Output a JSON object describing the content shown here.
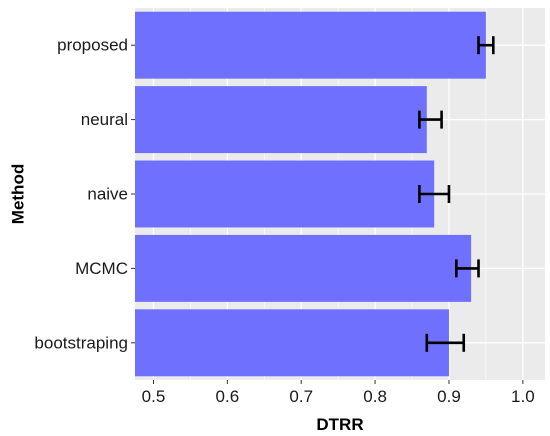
{
  "chart_data": {
    "type": "bar",
    "orientation": "horizontal",
    "xlabel": "DTRR",
    "ylabel": "Method",
    "categories": [
      "proposed",
      "neural",
      "naive",
      "MCMC",
      "bootstraping"
    ],
    "values": [
      0.95,
      0.87,
      0.88,
      0.93,
      0.9
    ],
    "error_low": [
      0.94,
      0.86,
      0.86,
      0.91,
      0.87
    ],
    "error_high": [
      0.96,
      0.89,
      0.9,
      0.94,
      0.92
    ],
    "xlim": [
      0.475,
      1.03
    ],
    "x_ticks": [
      "0.5",
      "0.6",
      "0.7",
      "0.8",
      "0.9",
      "1.0"
    ],
    "x_tick_values": [
      0.5,
      0.6,
      0.7,
      0.8,
      0.9,
      1.0
    ],
    "grid": true,
    "legend": "none",
    "colors": {
      "bar": "#7070ff",
      "panel": "#ebebeb",
      "gridline": "#ffffff",
      "errorbar": "#000000"
    }
  }
}
